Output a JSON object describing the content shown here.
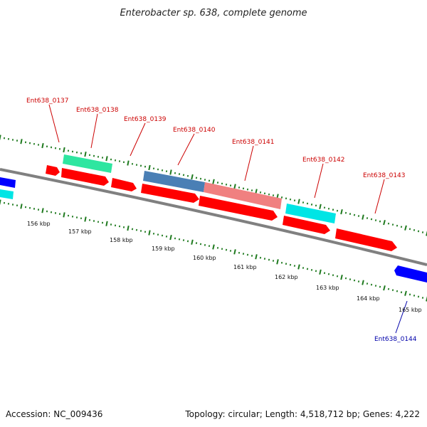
{
  "header": {
    "title": "Enterobacter sp. 638, complete genome"
  },
  "footer": {
    "accession": "Accession: NC_009436",
    "summary": "Topology: circular; Length: 4,518,712 bp; Genes: 4,222"
  },
  "colors": {
    "backbone": "#808080",
    "tick": "#1f7a1f",
    "forward_label": "#cc0000",
    "reverse_label": "#0000aa",
    "cds": "#ff0000",
    "blue_gene": "#0000ff",
    "cyan_gene": "#00e5e5",
    "green_gene": "#2ee6a0",
    "steelblue_gene": "#4a7fb5",
    "pink_gene": "#f08080"
  },
  "scale": {
    "unit": "kbp",
    "labels": [
      "156 kbp",
      "157 kbp",
      "158 kbp",
      "159 kbp",
      "160 kbp",
      "161 kbp",
      "162 kbp",
      "163 kbp",
      "164 kbp",
      "165 kbp"
    ]
  },
  "gene_labels": [
    {
      "id": "Ent638_0137",
      "strand": "forward"
    },
    {
      "id": "Ent638_0138",
      "strand": "forward"
    },
    {
      "id": "Ent638_0139",
      "strand": "forward"
    },
    {
      "id": "Ent638_0140",
      "strand": "forward"
    },
    {
      "id": "Ent638_0141",
      "strand": "forward"
    },
    {
      "id": "Ent638_0142",
      "strand": "forward"
    },
    {
      "id": "Ent638_0143",
      "strand": "forward"
    },
    {
      "id": "Ent638_0144",
      "strand": "reverse"
    }
  ]
}
